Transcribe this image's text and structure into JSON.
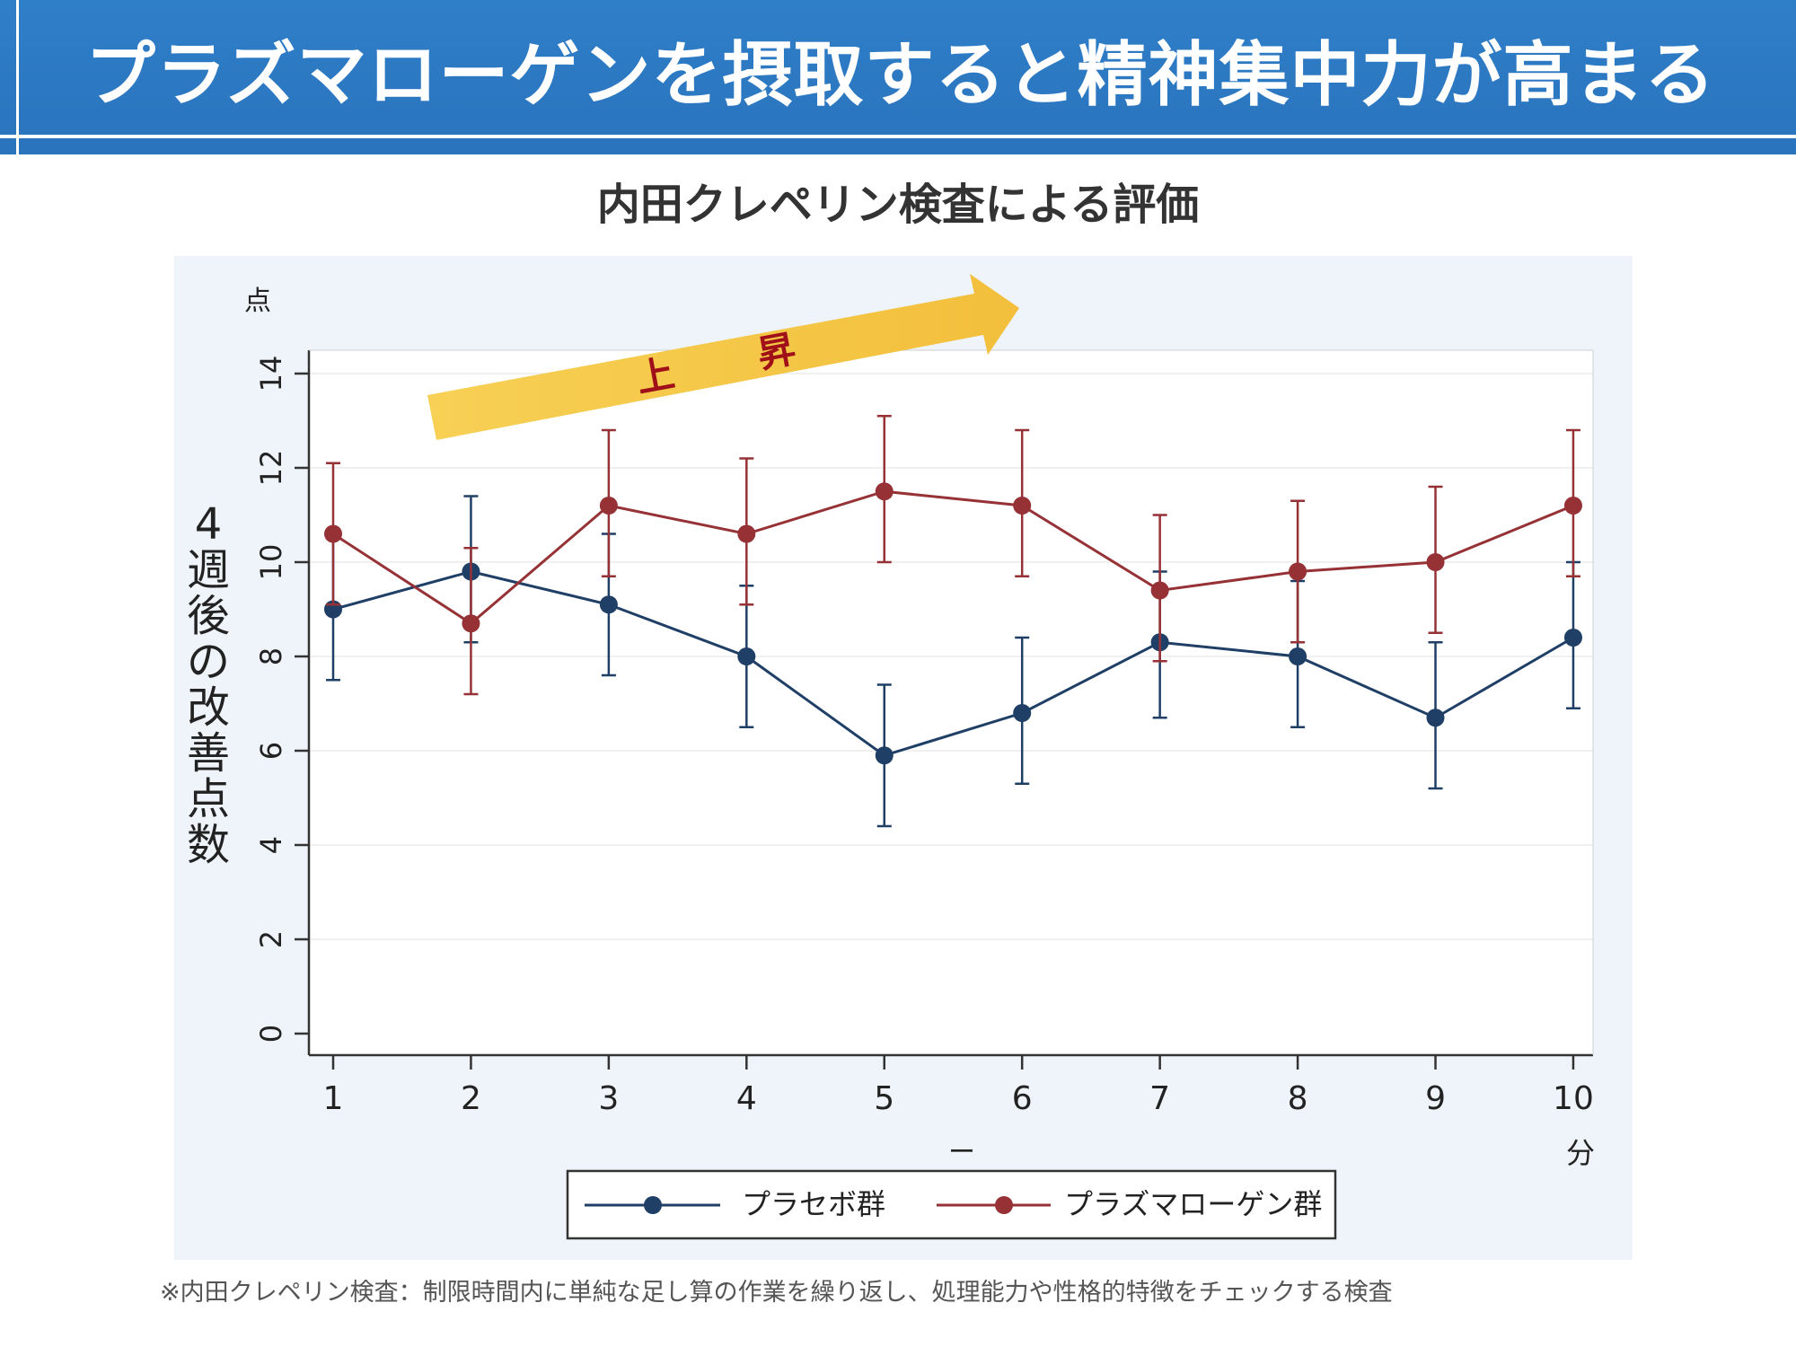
{
  "banner": {
    "title": "プラズマローゲンを摂取すると精神集中力が高まる"
  },
  "subtitle": "内田クレペリン検査による評価",
  "footnote": "※内田クレペリン検査：制限時間内に単純な足し算の作業を繰り返し、処理能力や性格的特徴をチェックする検査",
  "arrow_label": {
    "left": "上",
    "right": "昇"
  },
  "colors": {
    "banner": "#2a73bd",
    "placebo": "#1f3f66",
    "plasmalogen": "#963236",
    "arrow": "#f5c842",
    "arrow_text": "#a01018"
  },
  "chart_data": {
    "type": "line",
    "title": "内田クレペリン検査による評価",
    "unit_label": "点",
    "ylabel": "4週後の改善点数",
    "xlabel": "分",
    "xlabel_mark": "ー",
    "ylim": [
      0,
      14
    ],
    "yticks": [
      "0",
      "2",
      "4",
      "6",
      "8",
      "10",
      "12",
      "14"
    ],
    "categories": [
      "1",
      "2",
      "3",
      "4",
      "5",
      "6",
      "7",
      "8",
      "9",
      "10"
    ],
    "legend_position": "bottom-center",
    "series": [
      {
        "name": "プラセボ群",
        "color": "#1f3f66",
        "values": [
          9.0,
          9.8,
          9.1,
          8.0,
          5.9,
          6.8,
          8.3,
          8.0,
          6.7,
          8.4
        ],
        "error_low": [
          7.5,
          8.3,
          7.6,
          6.5,
          4.4,
          5.3,
          6.7,
          6.5,
          5.2,
          6.9
        ],
        "error_high": [
          10.6,
          11.4,
          10.6,
          9.5,
          7.4,
          8.4,
          9.8,
          9.6,
          8.3,
          10.0
        ]
      },
      {
        "name": "プラズマローゲン群",
        "color": "#963236",
        "values": [
          10.6,
          8.7,
          11.2,
          10.6,
          11.5,
          11.2,
          9.4,
          9.8,
          10.0,
          11.2
        ],
        "error_low": [
          9.1,
          7.2,
          9.7,
          9.1,
          10.0,
          9.7,
          7.9,
          8.3,
          8.5,
          9.7
        ],
        "error_high": [
          12.1,
          10.3,
          12.8,
          12.2,
          13.1,
          12.8,
          11.0,
          11.3,
          11.6,
          12.8
        ]
      }
    ]
  }
}
